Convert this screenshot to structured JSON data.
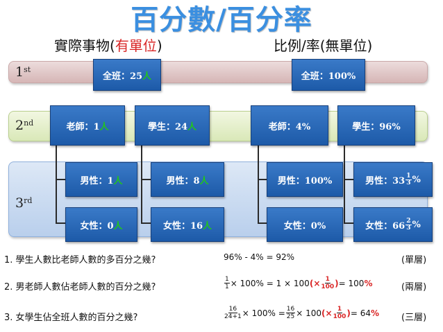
{
  "title": "百分數/百分率",
  "left_heading": {
    "pre": "實際事物(",
    "red": "有單位",
    "post": ")"
  },
  "right_heading": "比例/率(無單位)",
  "levels": [
    {
      "num": "1",
      "sup": "st"
    },
    {
      "num": "2",
      "sup": "nd"
    },
    {
      "num": "3",
      "sup": "rd"
    }
  ],
  "left_tree": {
    "root": {
      "label": "全班：25",
      "unit": "人"
    },
    "teacher": {
      "label": "老師：1",
      "unit": "人"
    },
    "student": {
      "label": "學生：24",
      "unit": "人"
    },
    "t_male": {
      "label": "男性：1",
      "unit": "人"
    },
    "t_female": {
      "label": "女性：0",
      "unit": "人"
    },
    "s_male": {
      "label": "男性：8",
      "unit": "人"
    },
    "s_female": {
      "label": "女性：16",
      "unit": "人"
    }
  },
  "right_tree": {
    "root": "全班：100%",
    "teacher": "老師：4%",
    "student": "學生：96%",
    "t_male": "男性：100%",
    "t_female": "女性：0%",
    "s_male": {
      "prefix": "男性：33",
      "num": "1",
      "den": "3",
      "suffix": "%"
    },
    "s_female": {
      "prefix": "女性：66",
      "num": "2",
      "den": "3",
      "suffix": "%"
    }
  },
  "questions": [
    {
      "text": "1. 學生人數比老師人數的多百分之幾?",
      "equation": "96% - 4% = 92%",
      "tag": "(單層)"
    },
    {
      "text": "2. 男老師人數佔老師人數的百分之幾?",
      "eq_num": "1",
      "eq_den": "1",
      "eq_mid": "× 100% = 1 × 100 ",
      "eq_red_pre": "(×",
      "eq_red_num": "1",
      "eq_red_den": "100",
      "eq_red_post": ")",
      "eq_end": " = 100",
      "eq_end_red": "%",
      "tag": "(兩層)"
    },
    {
      "text": "3. 女學生佔全班人數的百分之幾?",
      "f1_num": "16",
      "f1_den": "24+1",
      "mid1": "× 100% = ",
      "f2_num": "16",
      "f2_den": "25",
      "mid2": "× 100 ",
      "eq_red_pre": "(×",
      "eq_red_num": "1",
      "eq_red_den": "100",
      "eq_red_post": ")",
      "eq_end": " = 64",
      "eq_end_red": "%",
      "tag": "(三層)"
    }
  ],
  "colors": {
    "title": "#3b8fe0",
    "box": "#1d5aa8",
    "unit_green": "#22c41e",
    "accent_red": "#d92626"
  }
}
